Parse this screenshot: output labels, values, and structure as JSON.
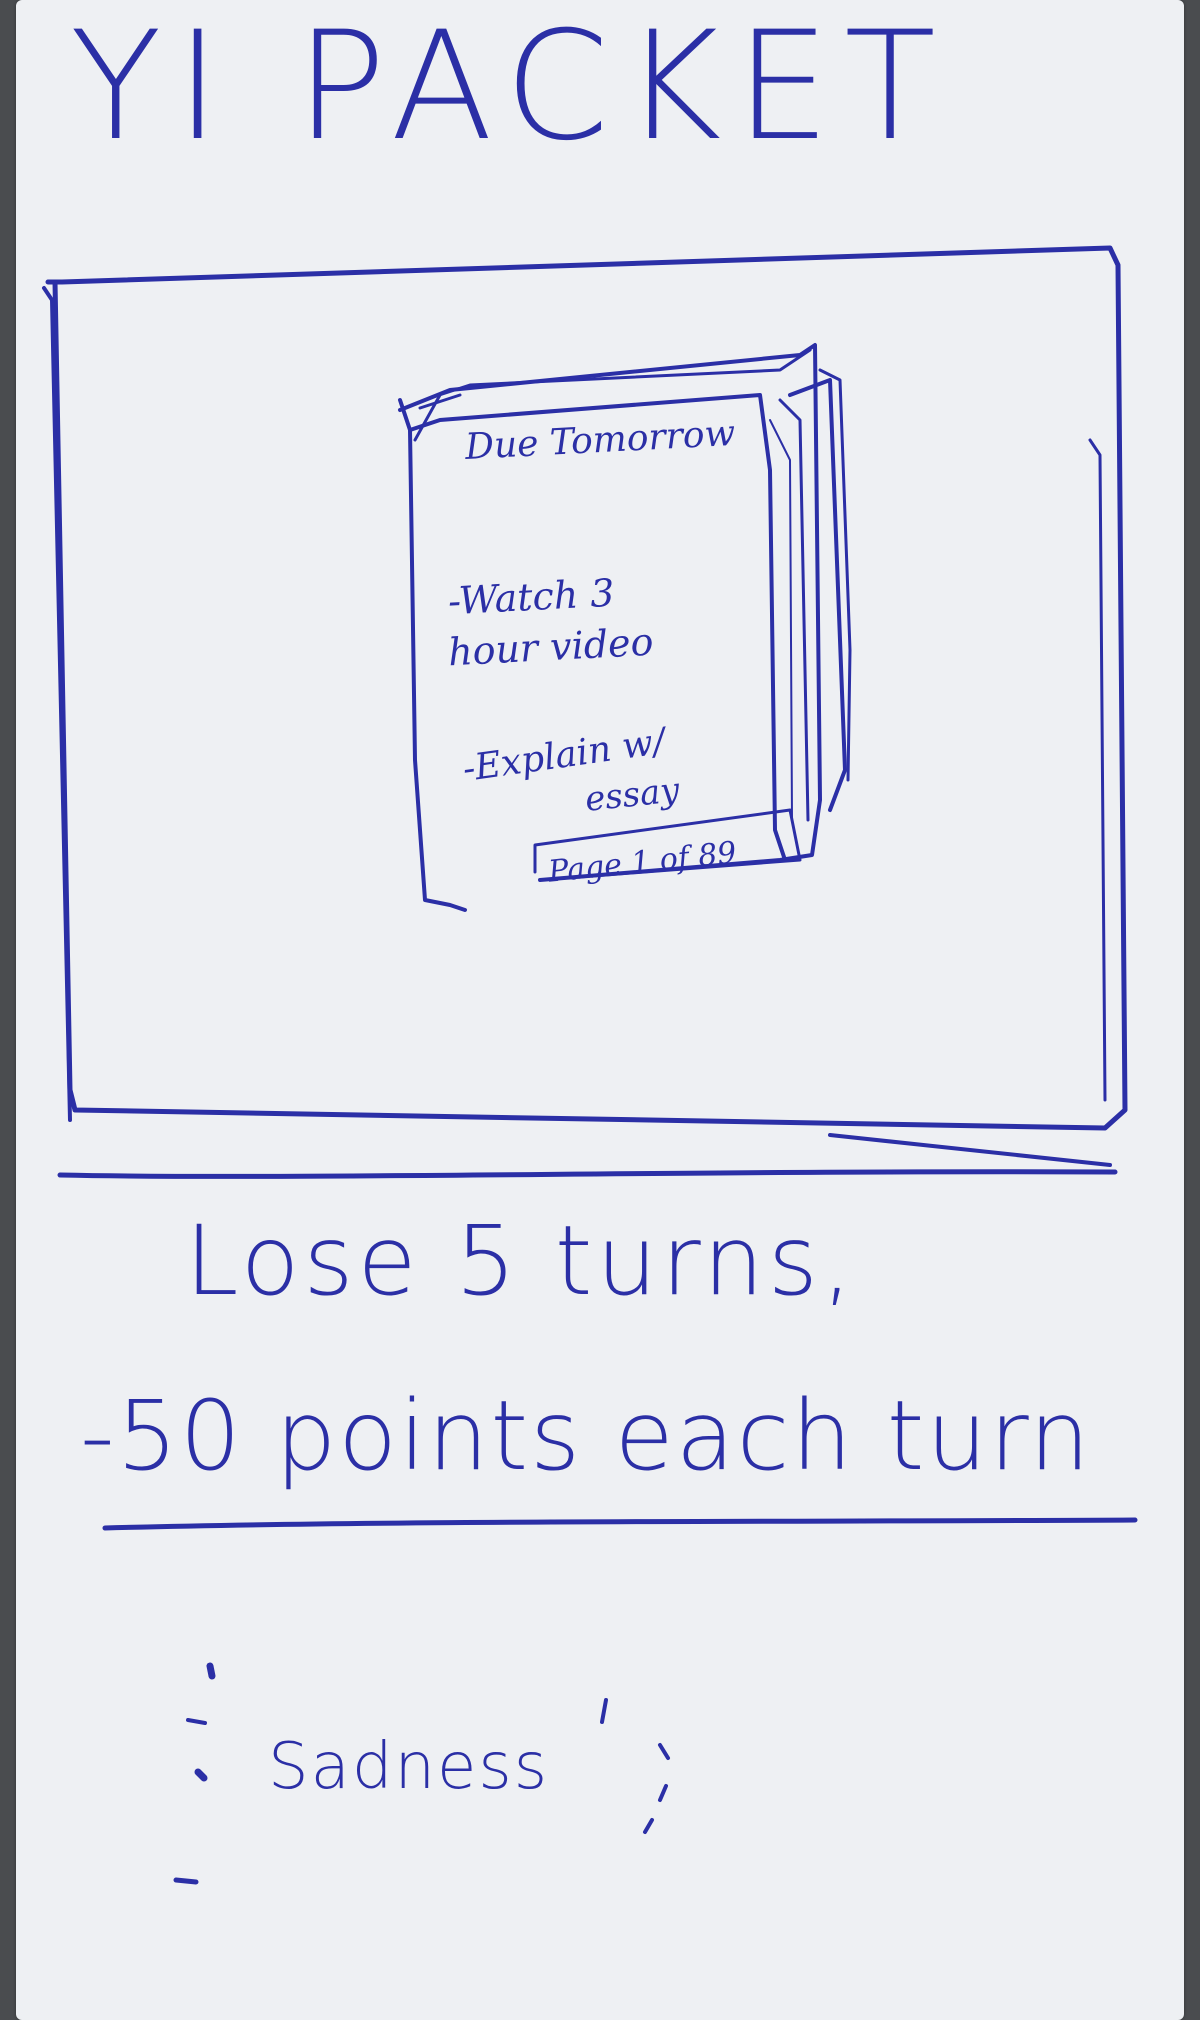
{
  "card": {
    "title": "YI PACKET",
    "illustration": {
      "header": "Due Tomorrow",
      "tasks": [
        {
          "line1": "-Watch 3",
          "line2": "hour video"
        },
        {
          "line1": "-Explain w/",
          "line2": "essay"
        }
      ],
      "page_indicator": "Page 1 of 89"
    },
    "effect": {
      "line1": "Lose 5 turns,",
      "line2": "-50 points each turn"
    },
    "flavor": "Sadness"
  },
  "colors": {
    "ink": "#2b2fa6",
    "paper": "#eef0f3",
    "background": "#4a4c4f"
  }
}
